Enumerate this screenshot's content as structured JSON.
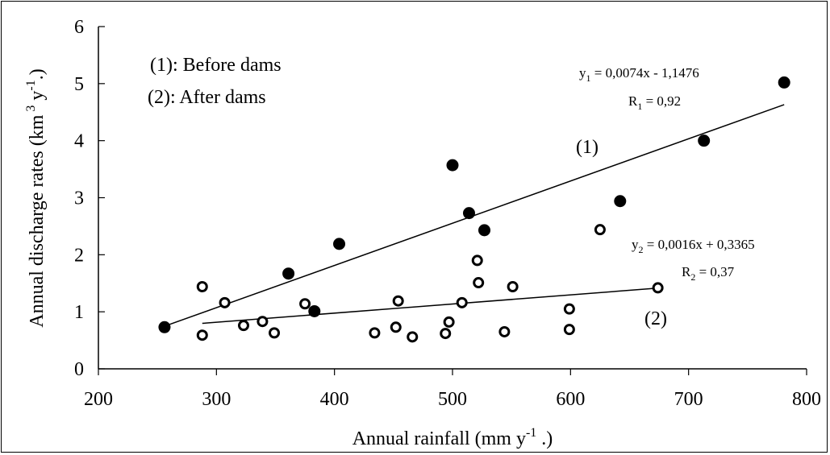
{
  "chart_data": {
    "type": "scatter",
    "xlabel": "Annual rainfall (mm y-1 .)",
    "ylabel": "Annual discharge rates (km3 y-1.)",
    "xlim": [
      200,
      800
    ],
    "ylim": [
      0,
      6
    ],
    "xticks": [
      200,
      300,
      400,
      500,
      600,
      700,
      800
    ],
    "yticks": [
      0,
      1,
      2,
      3,
      4,
      5,
      6
    ],
    "grid": false,
    "legend_text": [
      "(1): Before dams",
      "(2): After dams"
    ],
    "legend_position": "top-left",
    "series": [
      {
        "name": "(1): Before dams",
        "marker": "filled-circle",
        "points": [
          [
            256,
            0.73
          ],
          [
            361,
            1.67
          ],
          [
            383,
            1.01
          ],
          [
            404,
            2.19
          ],
          [
            500,
            3.57
          ],
          [
            514,
            2.73
          ],
          [
            527,
            2.43
          ],
          [
            642,
            2.94
          ],
          [
            713,
            4.0
          ],
          [
            781,
            5.02
          ]
        ],
        "fit": {
          "slope": 0.0074,
          "intercept": -1.1476,
          "x_range": [
            256,
            781
          ]
        },
        "equation_parts": {
          "y": "y",
          "sub": "1",
          "rhs": " = 0,0074x - 1,1476",
          "r": "R",
          "r_rhs": " = 0,92"
        },
        "curve_label": "(1)"
      },
      {
        "name": "(2): After dams",
        "marker": "open-circle",
        "points": [
          [
            288,
            1.44
          ],
          [
            288,
            0.59
          ],
          [
            307,
            1.16
          ],
          [
            323,
            0.76
          ],
          [
            339,
            0.83
          ],
          [
            349,
            0.63
          ],
          [
            375,
            1.14
          ],
          [
            434,
            0.63
          ],
          [
            452,
            0.73
          ],
          [
            454,
            1.19
          ],
          [
            466,
            0.56
          ],
          [
            494,
            0.62
          ],
          [
            497,
            0.82
          ],
          [
            508,
            1.16
          ],
          [
            521,
            1.9
          ],
          [
            522,
            1.51
          ],
          [
            544,
            0.65
          ],
          [
            551,
            1.44
          ],
          [
            599,
            1.05
          ],
          [
            599,
            0.69
          ],
          [
            625,
            2.44
          ],
          [
            674,
            1.42
          ]
        ],
        "fit": {
          "slope": 0.0016,
          "intercept": 0.3365,
          "x_range": [
            288,
            674
          ]
        },
        "equation_parts": {
          "y": "y",
          "sub": "2",
          "rhs": " = 0,0016x + 0,3365",
          "r": "R",
          "r_rhs": " = 0,37"
        },
        "curve_label": "(2)"
      }
    ]
  }
}
